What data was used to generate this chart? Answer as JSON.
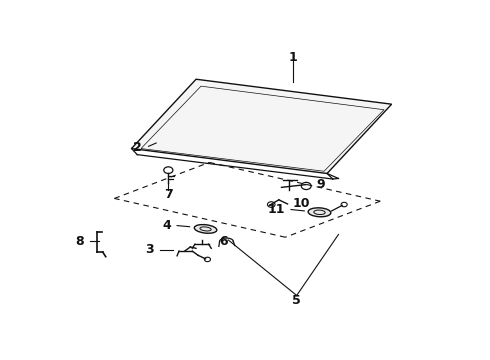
{
  "background_color": "#ffffff",
  "figure_width": 4.9,
  "figure_height": 3.6,
  "dpi": 100,
  "label_fontsize": 9,
  "line_color": "#111111"
}
